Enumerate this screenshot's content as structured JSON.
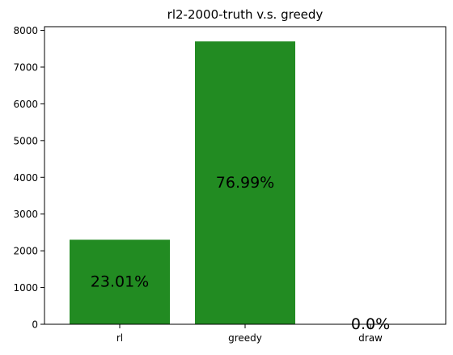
{
  "chart_data": {
    "type": "bar",
    "title": "rl2-2000-truth v.s. greedy",
    "categories": [
      "rl",
      "greedy",
      "draw"
    ],
    "values": [
      2301,
      7699,
      0
    ],
    "data_labels": [
      "23.01%",
      "76.99%",
      "0.0%"
    ],
    "xlabel": "",
    "ylabel": "",
    "ylim": [
      0,
      8100
    ],
    "yticks": [
      0,
      1000,
      2000,
      3000,
      4000,
      5000,
      6000,
      7000,
      8000
    ],
    "grid": false,
    "legend": "none",
    "bar_color": "#228b22"
  }
}
